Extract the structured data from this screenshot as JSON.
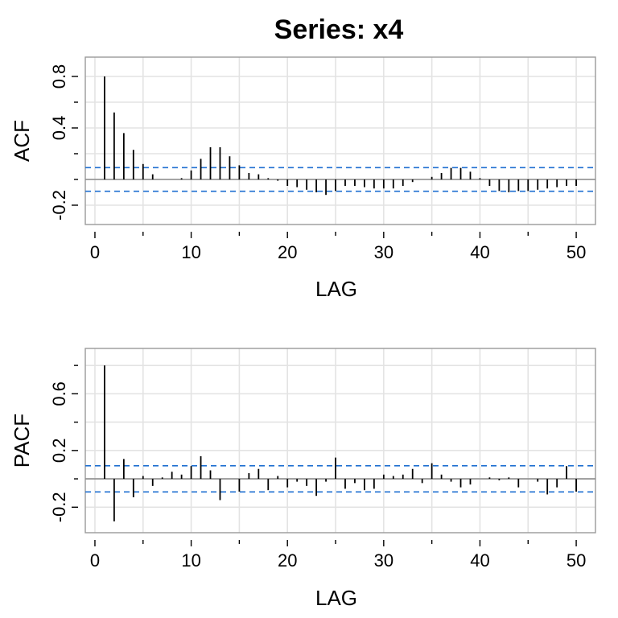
{
  "chart_data": {
    "title": "Series:  x4",
    "panels": [
      {
        "type": "bar",
        "ylabel": "ACF",
        "xlabel": "LAG",
        "xlim": [
          -1,
          52
        ],
        "ylim": [
          -0.35,
          0.95
        ],
        "x_ticks": [
          0,
          10,
          20,
          30,
          40,
          50
        ],
        "y_tick_labels": [
          -0.2,
          0.4,
          0.8
        ],
        "y_minor_ticks": [
          0.0,
          0.2,
          0.6
        ],
        "grid": true,
        "confidence_bound": 0.092,
        "lags": [
          1,
          2,
          3,
          4,
          5,
          6,
          7,
          8,
          9,
          10,
          11,
          12,
          13,
          14,
          15,
          16,
          17,
          18,
          19,
          20,
          21,
          22,
          23,
          24,
          25,
          26,
          27,
          28,
          29,
          30,
          31,
          32,
          33,
          34,
          35,
          36,
          37,
          38,
          39,
          40,
          41,
          42,
          43,
          44,
          45,
          46,
          47,
          48,
          49,
          50
        ],
        "values": [
          0.8,
          0.52,
          0.36,
          0.23,
          0.12,
          0.04,
          0.0,
          0.0,
          0.01,
          0.07,
          0.16,
          0.25,
          0.25,
          0.18,
          0.11,
          0.05,
          0.04,
          0.01,
          -0.01,
          -0.05,
          -0.06,
          -0.08,
          -0.1,
          -0.12,
          -0.09,
          -0.05,
          -0.05,
          -0.06,
          -0.07,
          -0.07,
          -0.07,
          -0.05,
          -0.02,
          0.0,
          0.02,
          0.05,
          0.09,
          0.09,
          0.06,
          0.01,
          -0.05,
          -0.09,
          -0.1,
          -0.09,
          -0.09,
          -0.08,
          -0.07,
          -0.06,
          -0.05,
          -0.05
        ]
      },
      {
        "type": "bar",
        "ylabel": "PACF",
        "xlabel": "LAG",
        "xlim": [
          -1,
          52
        ],
        "ylim": [
          -0.38,
          0.92
        ],
        "x_ticks": [
          0,
          10,
          20,
          30,
          40,
          50
        ],
        "y_tick_labels": [
          -0.2,
          0.2,
          0.6
        ],
        "y_minor_ticks": [
          0.0,
          0.4,
          0.8
        ],
        "grid": true,
        "confidence_bound": 0.092,
        "lags": [
          1,
          2,
          3,
          4,
          5,
          6,
          7,
          8,
          9,
          10,
          11,
          12,
          13,
          14,
          15,
          16,
          17,
          18,
          19,
          20,
          21,
          22,
          23,
          24,
          25,
          26,
          27,
          28,
          29,
          30,
          31,
          32,
          33,
          34,
          35,
          36,
          37,
          38,
          39,
          40,
          41,
          42,
          43,
          44,
          45,
          46,
          47,
          48,
          49,
          50
        ],
        "values": [
          0.8,
          -0.3,
          0.14,
          -0.13,
          0.02,
          -0.05,
          0.01,
          0.05,
          0.03,
          0.09,
          0.16,
          0.06,
          -0.15,
          0.0,
          -0.09,
          0.04,
          0.07,
          -0.08,
          0.02,
          -0.06,
          -0.02,
          -0.05,
          -0.12,
          -0.02,
          0.15,
          -0.07,
          -0.03,
          -0.08,
          -0.07,
          0.03,
          0.02,
          0.03,
          0.07,
          -0.03,
          0.11,
          0.03,
          -0.02,
          -0.06,
          -0.04,
          0.0,
          0.01,
          -0.01,
          0.01,
          -0.06,
          0.0,
          -0.02,
          -0.11,
          -0.06,
          0.09,
          -0.09
        ]
      }
    ]
  }
}
